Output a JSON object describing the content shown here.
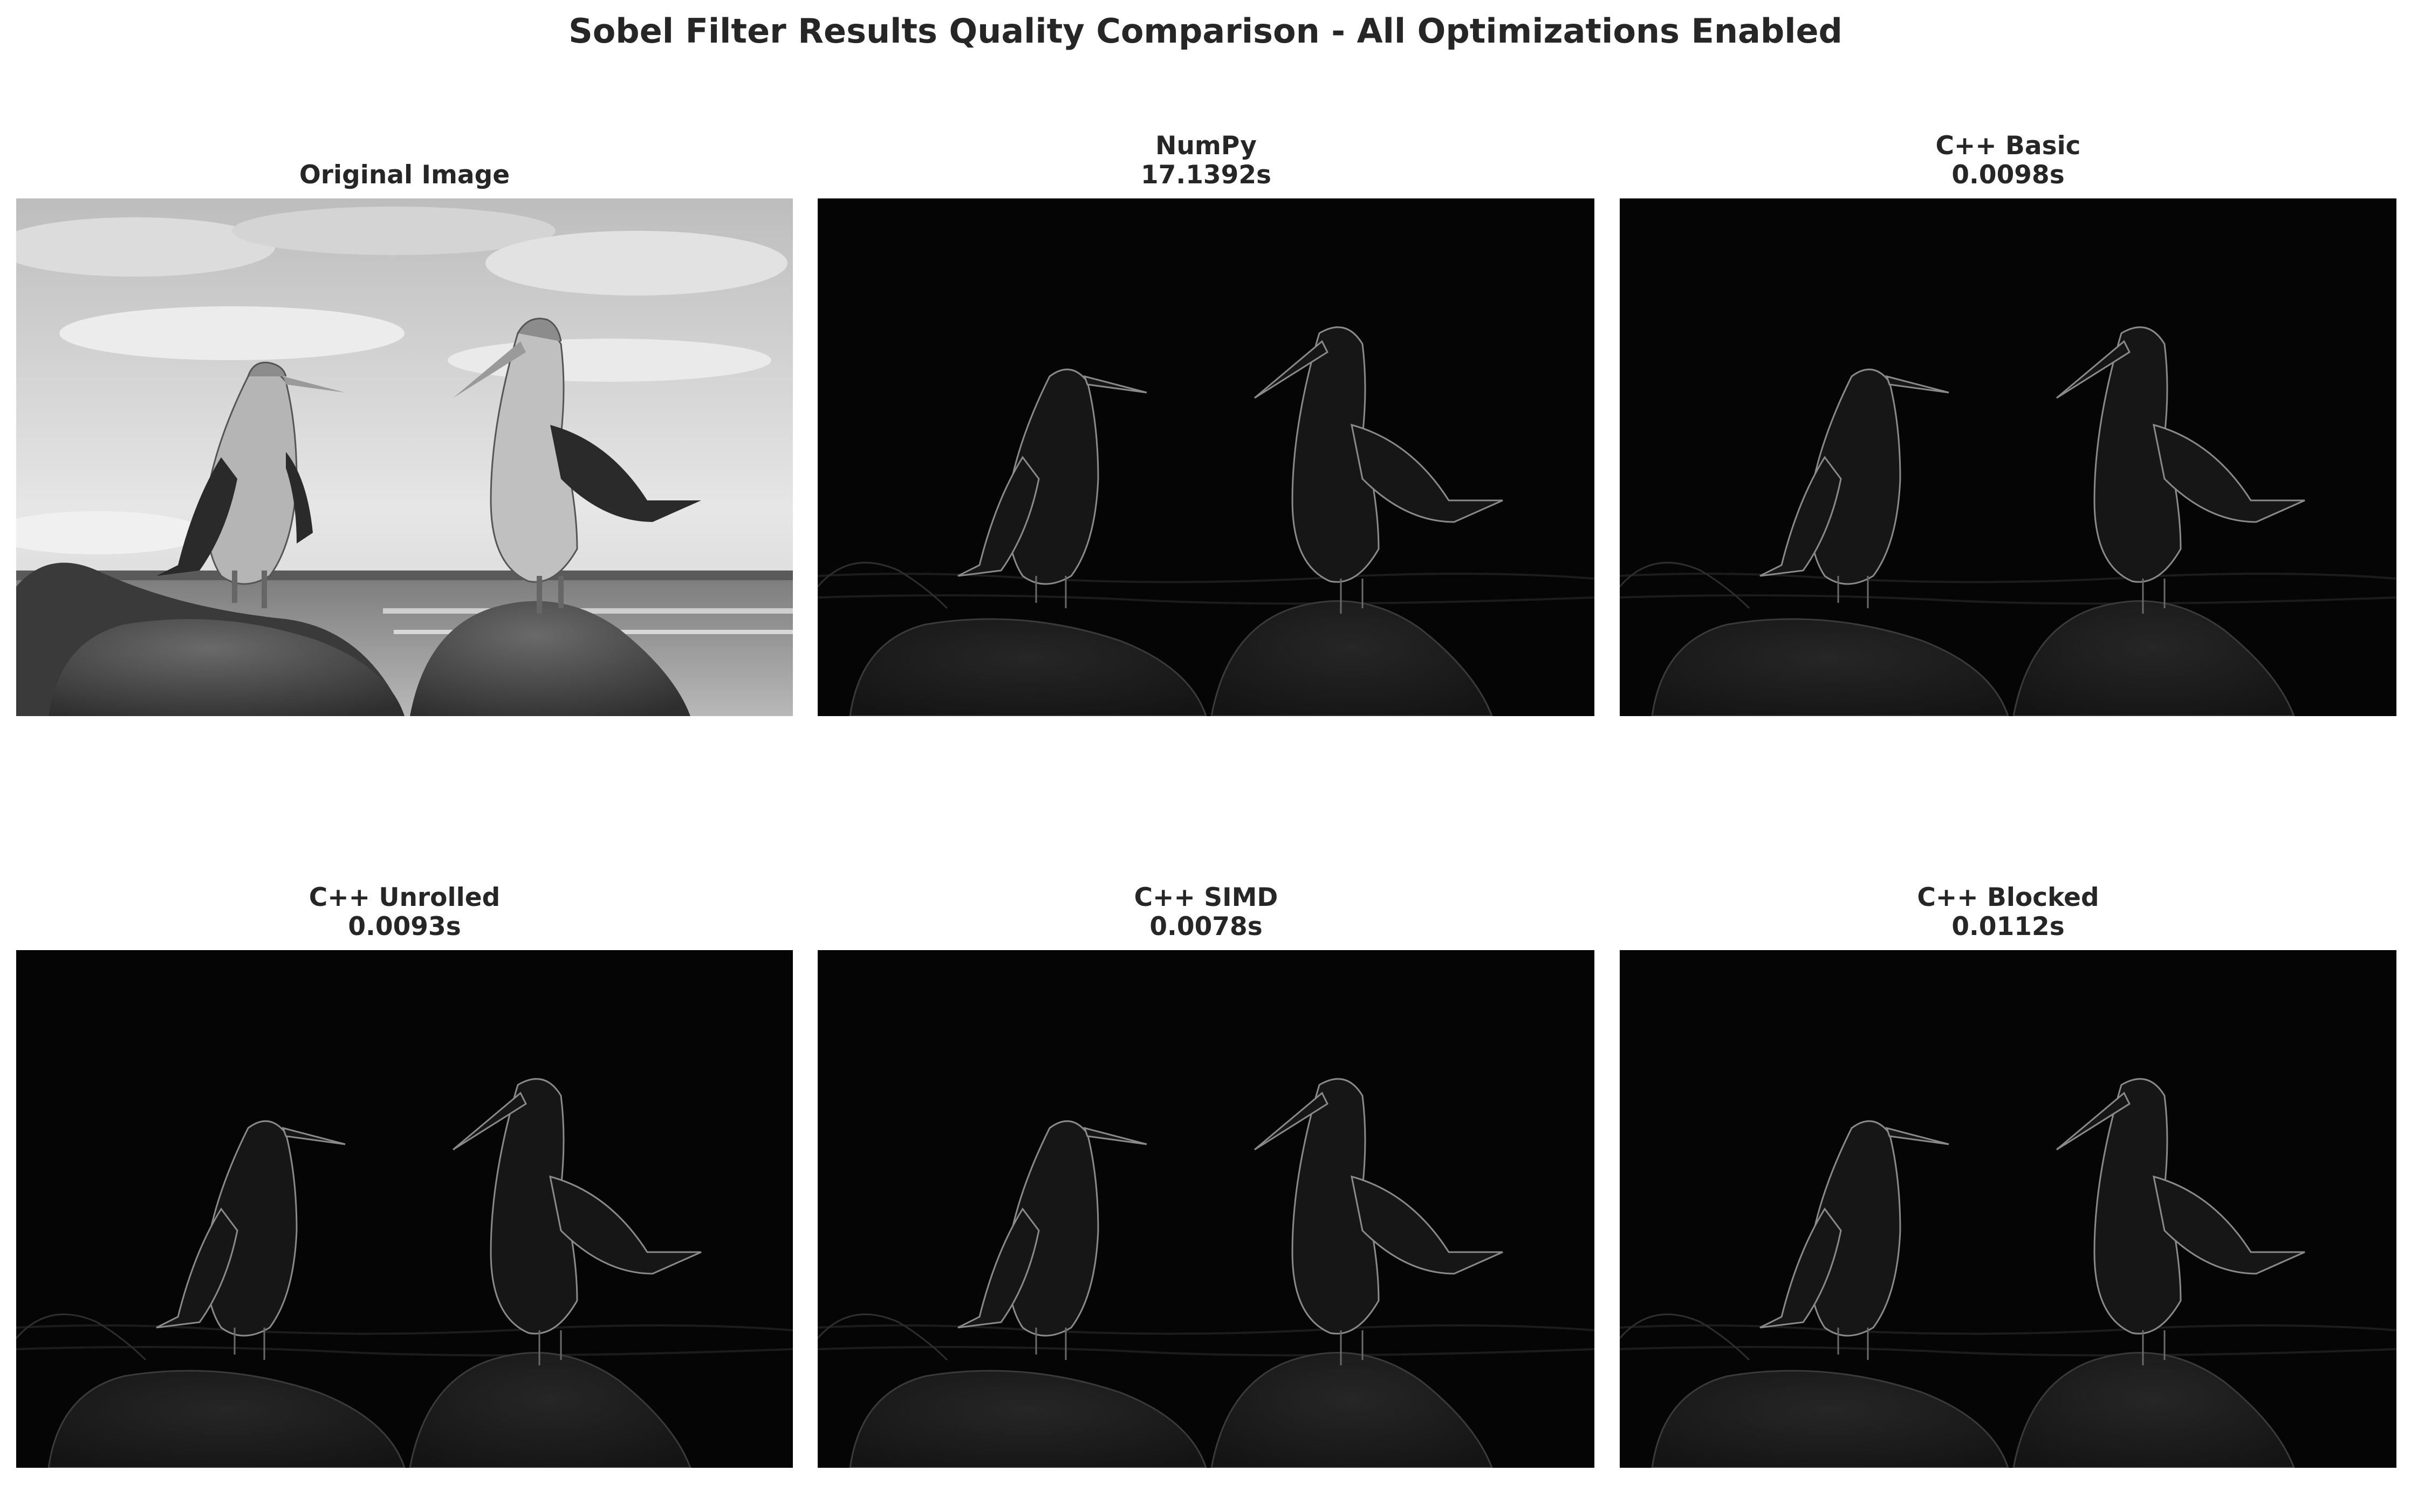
{
  "figure": {
    "title": "Sobel Filter Results Quality Comparison - All Optimizations Enabled"
  },
  "panels": [
    {
      "kind": "original",
      "title": "Original Image",
      "time": ""
    },
    {
      "kind": "edges",
      "title": "NumPy",
      "time": "17.1392s"
    },
    {
      "kind": "edges",
      "title": "C++ Basic",
      "time": "0.0098s"
    },
    {
      "kind": "edges",
      "title": "C++ Unrolled",
      "time": "0.0093s"
    },
    {
      "kind": "edges",
      "title": "C++ SIMD",
      "time": "0.0078s"
    },
    {
      "kind": "edges",
      "title": "C++ Blocked",
      "time": "0.0112s"
    }
  ],
  "colors": {
    "edge_background": "#050505",
    "edge_line": "#8a8a8a",
    "original_sky": "#c9c9c9",
    "original_rock": "#4a4a4a"
  }
}
